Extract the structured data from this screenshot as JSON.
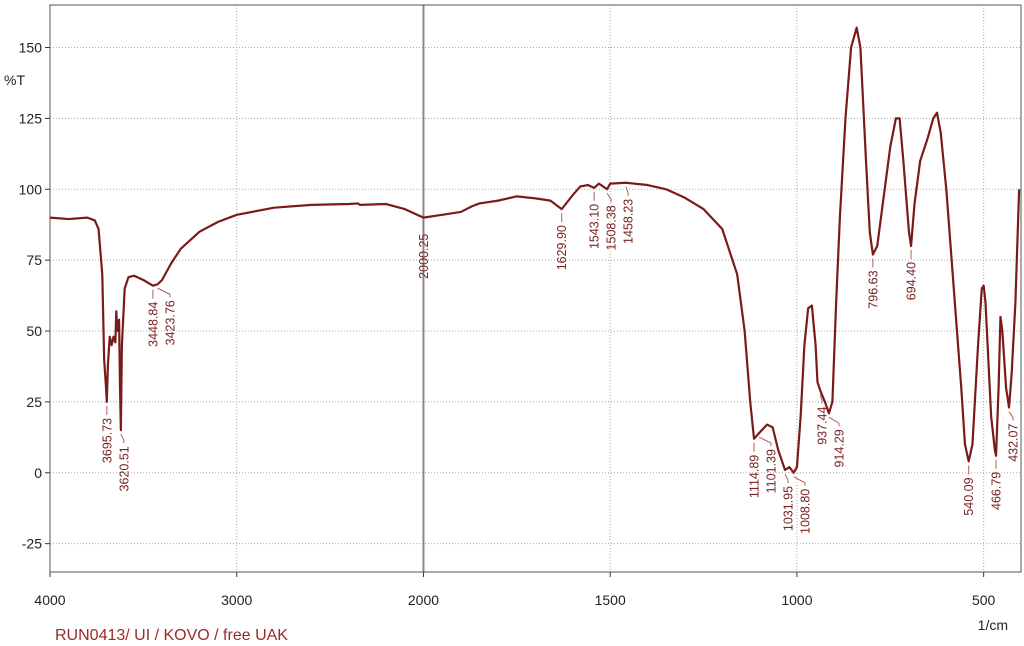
{
  "chart_data": {
    "type": "line",
    "color": "#7b1a1a",
    "y_label": "%T",
    "x_label": "1/cm",
    "footer": "RUN0413/ UI / KOVO / free UAK",
    "xlim": [
      4000,
      400
    ],
    "xticks": [
      4000,
      3000,
      2000,
      1500,
      1000,
      500
    ],
    "ylim": [
      -35,
      165
    ],
    "yticks": [
      -25,
      0,
      25,
      50,
      75,
      100,
      125,
      150
    ],
    "grid": true,
    "x": [
      4000,
      3900,
      3800,
      3760,
      3740,
      3720,
      3710,
      3700,
      3695.73,
      3690,
      3680,
      3670,
      3660,
      3650,
      3645,
      3640,
      3630,
      3625,
      3620.51,
      3615,
      3600,
      3580,
      3550,
      3500,
      3448.84,
      3423.76,
      3400,
      3350,
      3300,
      3200,
      3100,
      3000,
      2800,
      2600,
      2400,
      2350,
      2340,
      2200,
      2100,
      2000.25,
      1950,
      1900,
      1870,
      1850,
      1800,
      1750,
      1700,
      1660,
      1629.9,
      1600,
      1580,
      1560,
      1543.1,
      1530,
      1508.38,
      1500,
      1458.23,
      1400,
      1350,
      1300,
      1250,
      1200,
      1160,
      1140,
      1125,
      1114.89,
      1108,
      1101.39,
      1080,
      1065,
      1050,
      1031.95,
      1020,
      1008.8,
      1000,
      990,
      980,
      970,
      960,
      950,
      945,
      937.44,
      925,
      914.29,
      905,
      895,
      885,
      870,
      855,
      840,
      830,
      815,
      805,
      796.63,
      785,
      770,
      750,
      735,
      725,
      715,
      700,
      694.4,
      685,
      670,
      650,
      635,
      625,
      615,
      600,
      580,
      560,
      550,
      540.09,
      530,
      515,
      505,
      500,
      495,
      480,
      470,
      466.79,
      460,
      455,
      450,
      440,
      432.07,
      425,
      415,
      405
    ],
    "values": [
      90,
      89.5,
      90,
      89,
      86,
      70,
      40,
      30,
      25,
      38,
      48,
      45,
      48,
      46,
      57,
      50,
      54,
      30,
      15,
      45,
      65,
      69,
      69.5,
      68,
      66,
      66.5,
      68,
      74,
      79,
      85,
      88.5,
      91,
      93.5,
      94.5,
      94.8,
      95,
      94.5,
      94.8,
      93,
      90,
      91,
      92,
      94,
      95,
      96,
      97.5,
      96.8,
      96,
      93,
      98,
      101,
      101.5,
      100.5,
      102,
      100,
      102,
      102.3,
      101.5,
      100,
      97,
      93,
      86,
      70,
      50,
      25,
      12,
      13,
      14,
      17,
      16,
      8,
      1,
      2,
      0,
      2,
      20,
      45,
      58,
      59,
      45,
      32,
      29,
      25,
      21,
      25,
      60,
      90,
      125,
      150,
      157,
      150,
      110,
      85,
      77,
      80,
      95,
      115,
      125,
      125,
      110,
      85,
      80,
      95,
      110,
      118,
      125,
      127,
      120,
      100,
      65,
      30,
      10,
      4,
      10,
      45,
      65,
      66,
      60,
      20,
      8,
      6,
      30,
      55,
      50,
      30,
      23,
      35,
      60,
      100
    ],
    "annotations": [
      {
        "text": "3695.73",
        "x": 3695.73,
        "y": 25
      },
      {
        "text": "3620.51",
        "x": 3620.51,
        "y": 15
      },
      {
        "text": "3448.84",
        "x": 3448.84,
        "y": 66
      },
      {
        "text": "3423.76",
        "x": 3423.76,
        "y": 66.5
      },
      {
        "text": "2000.25",
        "x": 2000.25,
        "y": 90
      },
      {
        "text": "1629.90",
        "x": 1629.9,
        "y": 93
      },
      {
        "text": "1543.10",
        "x": 1543.1,
        "y": 100.5
      },
      {
        "text": "1508.38",
        "x": 1508.38,
        "y": 100
      },
      {
        "text": "1458.23",
        "x": 1458.23,
        "y": 102.3
      },
      {
        "text": "1114.89",
        "x": 1114.89,
        "y": 12
      },
      {
        "text": "1101.39",
        "x": 1101.39,
        "y": 14
      },
      {
        "text": "1031.95",
        "x": 1031.95,
        "y": 1
      },
      {
        "text": "1008.80",
        "x": 1008.8,
        "y": 0
      },
      {
        "text": "937.44",
        "x": 937.44,
        "y": 29
      },
      {
        "text": "914.29",
        "x": 914.29,
        "y": 21
      },
      {
        "text": "796.63",
        "x": 796.63,
        "y": 77
      },
      {
        "text": "694.40",
        "x": 694.4,
        "y": 80
      },
      {
        "text": "540.09",
        "x": 540.09,
        "y": 4
      },
      {
        "text": "466.79",
        "x": 466.79,
        "y": 6
      },
      {
        "text": "432.07",
        "x": 432.07,
        "y": 23
      }
    ]
  }
}
